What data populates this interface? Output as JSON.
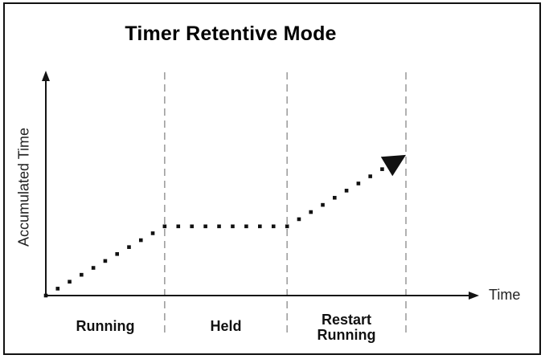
{
  "colors": {
    "line": "#111111",
    "axis": "#141414",
    "divider": "#9e9e9e",
    "text": "#1a1a1a",
    "background": "#ffffff",
    "border": "#111111"
  },
  "chart_data": {
    "type": "line",
    "line_style": "dotted",
    "title": "Timer Retentive Mode",
    "xlabel": "Time",
    "ylabel": "Accumulated Time",
    "x_ticks": [],
    "y_ticks": [],
    "x_range": [
      0,
      1
    ],
    "y_range": [
      0,
      1
    ],
    "points": [
      {
        "x": 0.0,
        "y": 0.0
      },
      {
        "x": 0.33,
        "y": 0.31
      },
      {
        "x": 0.67,
        "y": 0.31
      },
      {
        "x": 1.0,
        "y": 0.63
      }
    ],
    "end_marker": "filled-arrowhead",
    "dividers_x": [
      0.33,
      0.67,
      1.0
    ],
    "phases": [
      {
        "label": "Running",
        "behavior": "accumulating"
      },
      {
        "label": "Held",
        "behavior": "constant"
      },
      {
        "label": "Restart\nRunning",
        "behavior": "accumulating"
      }
    ],
    "legend": null,
    "grid": false
  }
}
